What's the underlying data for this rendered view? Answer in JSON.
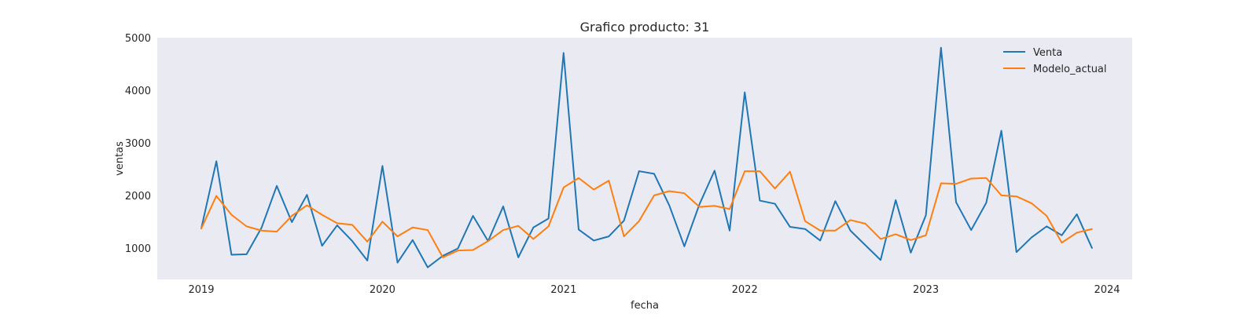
{
  "chart_data": {
    "type": "line",
    "title": "Grafico producto: 31",
    "xlabel": "fecha",
    "ylabel": "ventas",
    "x_start": "2019-01",
    "x_ticks": [
      "2019",
      "2020",
      "2021",
      "2022",
      "2023",
      "2024"
    ],
    "y_ticks": [
      1000,
      2000,
      3000,
      4000,
      5000
    ],
    "ylim": [
      400,
      5000
    ],
    "grid": false,
    "background": "#eaeaf2",
    "legend_position": "top-right",
    "series": [
      {
        "name": "Venta",
        "color": "#1f77b4",
        "values": [
          1370,
          2650,
          870,
          880,
          1390,
          2180,
          1490,
          2010,
          1040,
          1430,
          1130,
          760,
          2560,
          720,
          1150,
          630,
          850,
          990,
          1610,
          1130,
          1790,
          820,
          1390,
          1560,
          4710,
          1350,
          1140,
          1220,
          1520,
          2460,
          2410,
          1810,
          1030,
          1830,
          2470,
          1330,
          3960,
          1900,
          1840,
          1400,
          1360,
          1140,
          1890,
          1330,
          1050,
          770,
          1910,
          910,
          1620,
          4810,
          1870,
          1340,
          1860,
          3230,
          920,
          1200,
          1410,
          1240,
          1640,
          1000
        ]
      },
      {
        "name": "Modelo_actual",
        "color": "#ff7f0e",
        "values": [
          1370,
          1990,
          1630,
          1410,
          1330,
          1310,
          1610,
          1810,
          1630,
          1470,
          1440,
          1120,
          1500,
          1220,
          1390,
          1340,
          820,
          950,
          960,
          1130,
          1340,
          1420,
          1170,
          1410,
          2150,
          2330,
          2110,
          2280,
          1220,
          1510,
          2000,
          2080,
          2040,
          1780,
          1800,
          1740,
          2460,
          2460,
          2130,
          2450,
          1510,
          1330,
          1330,
          1530,
          1460,
          1170,
          1260,
          1150,
          1240,
          2230,
          2220,
          2320,
          2330,
          2000,
          1980,
          1850,
          1610,
          1100,
          1290,
          1360
        ]
      }
    ]
  }
}
